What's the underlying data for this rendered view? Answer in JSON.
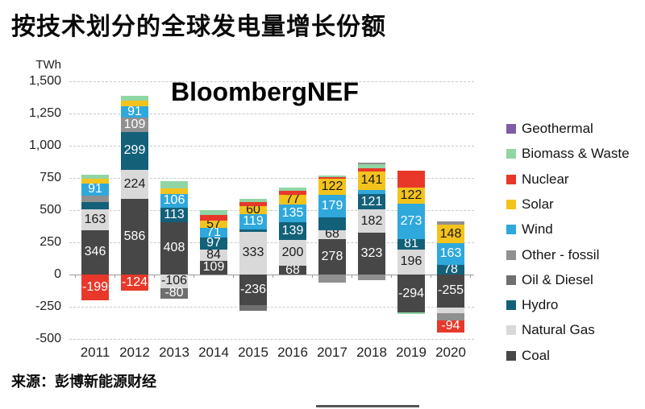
{
  "title": "按技术划分的全球发电量增长份额",
  "watermark": "BloombergNEF",
  "source": "来源：彭博新能源财经",
  "axis_unit": "TWh",
  "colors": {
    "coal": "#474747",
    "natgas": "#d9d9d9",
    "hydro": "#136079",
    "oil": "#6f6f6f",
    "other": "#909090",
    "wind": "#2fa8dc",
    "solar": "#f3c31d",
    "nuclear": "#e8382a",
    "biomass": "#90d5a4",
    "geothermal": "#7e5ca6"
  },
  "text_colors": {
    "coal": "#ffffff",
    "natgas": "#1a1a1a",
    "hydro": "#ffffff",
    "oil": "#ffffff",
    "other": "#ffffff",
    "wind": "#ffffff",
    "solar": "#1a1a1a",
    "nuclear": "#ffffff",
    "biomass": "#1a1a1a",
    "geothermal": "#ffffff"
  },
  "legend": {
    "items": [
      {
        "tech": "geothermal",
        "label": "Geothermal"
      },
      {
        "tech": "biomass",
        "label": "Biomass & Waste"
      },
      {
        "tech": "nuclear",
        "label": "Nuclear"
      },
      {
        "tech": "solar",
        "label": "Solar"
      },
      {
        "tech": "wind",
        "label": "Wind"
      },
      {
        "tech": "other",
        "label": "Other - fossil"
      },
      {
        "tech": "oil",
        "label": "Oil & Diesel"
      },
      {
        "tech": "hydro",
        "label": "Hydro"
      },
      {
        "tech": "natgas",
        "label": "Natural Gas"
      },
      {
        "tech": "coal",
        "label": "Coal"
      }
    ]
  },
  "chart_data": {
    "type": "bar",
    "stacked": true,
    "title": "按技术划分的全球发电量增长份额",
    "ylabel": "TWh",
    "ylim": [
      -500,
      1500
    ],
    "grid": "dashed horizontal",
    "legend_position": "right",
    "yticks": [
      {
        "value": 1500,
        "label": "1,500"
      },
      {
        "value": 1250,
        "label": "1,250"
      },
      {
        "value": 1000,
        "label": "1,000"
      },
      {
        "value": 750,
        "label": "750"
      },
      {
        "value": 500,
        "label": "500"
      },
      {
        "value": 250,
        "label": "250"
      },
      {
        "value": 0,
        "label": "0"
      },
      {
        "value": -250,
        "label": "-250"
      },
      {
        "value": -500,
        "label": "-500"
      }
    ],
    "note": "segments listed from zero outward; label empty = unlabeled in chart, value then estimated from pixels",
    "years": [
      {
        "year": "2011",
        "segments": [
          {
            "tech": "coal",
            "value": 346,
            "label": "346"
          },
          {
            "tech": "natgas",
            "value": 163,
            "label": "163"
          },
          {
            "tech": "hydro",
            "value": 55,
            "label": ""
          },
          {
            "tech": "other",
            "value": 50,
            "label": ""
          },
          {
            "tech": "wind",
            "value": 91,
            "label": "91"
          },
          {
            "tech": "solar",
            "value": 40,
            "label": ""
          },
          {
            "tech": "biomass",
            "value": 30,
            "label": ""
          },
          {
            "tech": "nuclear",
            "value": -199,
            "label": "-199"
          }
        ]
      },
      {
        "year": "2012",
        "segments": [
          {
            "tech": "coal",
            "value": 586,
            "label": "586"
          },
          {
            "tech": "natgas",
            "value": 224,
            "label": "224"
          },
          {
            "tech": "hydro",
            "value": 299,
            "label": "299"
          },
          {
            "tech": "other",
            "value": 109,
            "label": "109"
          },
          {
            "tech": "wind",
            "value": 91,
            "label": "91"
          },
          {
            "tech": "solar",
            "value": 38,
            "label": ""
          },
          {
            "tech": "biomass",
            "value": 38,
            "label": ""
          },
          {
            "tech": "nuclear",
            "value": -124,
            "label": "-124"
          }
        ]
      },
      {
        "year": "2013",
        "segments": [
          {
            "tech": "coal",
            "value": 408,
            "label": "408"
          },
          {
            "tech": "hydro",
            "value": 113,
            "label": "113"
          },
          {
            "tech": "wind",
            "value": 106,
            "label": "106"
          },
          {
            "tech": "solar",
            "value": 40,
            "label": ""
          },
          {
            "tech": "biomass",
            "value": 55,
            "label": ""
          },
          {
            "tech": "natgas",
            "value": -106,
            "label": "-106"
          },
          {
            "tech": "oil",
            "value": -80,
            "label": "-80"
          }
        ]
      },
      {
        "year": "2014",
        "segments": [
          {
            "tech": "coal",
            "value": 109,
            "label": "109"
          },
          {
            "tech": "natgas",
            "value": 84,
            "label": "84"
          },
          {
            "tech": "hydro",
            "value": 97,
            "label": "97"
          },
          {
            "tech": "wind",
            "value": 71,
            "label": "71"
          },
          {
            "tech": "solar",
            "value": 57,
            "label": "57"
          },
          {
            "tech": "nuclear",
            "value": 45,
            "label": ""
          },
          {
            "tech": "biomass",
            "value": 35,
            "label": ""
          }
        ]
      },
      {
        "year": "2015",
        "segments": [
          {
            "tech": "natgas",
            "value": 333,
            "label": "333"
          },
          {
            "tech": "hydro",
            "value": 19,
            "label": ""
          },
          {
            "tech": "wind",
            "value": 119,
            "label": "119"
          },
          {
            "tech": "solar",
            "value": 60,
            "label": "60"
          },
          {
            "tech": "nuclear",
            "value": 30,
            "label": ""
          },
          {
            "tech": "biomass",
            "value": 25,
            "label": ""
          },
          {
            "tech": "coal",
            "value": -236,
            "label": "-236"
          },
          {
            "tech": "oil",
            "value": -45,
            "label": ""
          }
        ]
      },
      {
        "year": "2016",
        "segments": [
          {
            "tech": "coal",
            "value": 68,
            "label": "68"
          },
          {
            "tech": "natgas",
            "value": 200,
            "label": "200"
          },
          {
            "tech": "hydro",
            "value": 139,
            "label": "139"
          },
          {
            "tech": "wind",
            "value": 135,
            "label": "135"
          },
          {
            "tech": "solar",
            "value": 77,
            "label": "77"
          },
          {
            "tech": "nuclear",
            "value": 28,
            "label": ""
          },
          {
            "tech": "biomass",
            "value": 28,
            "label": ""
          }
        ]
      },
      {
        "year": "2017",
        "segments": [
          {
            "tech": "coal",
            "value": 278,
            "label": "278"
          },
          {
            "tech": "natgas",
            "value": 68,
            "label": "68"
          },
          {
            "tech": "hydro",
            "value": 95,
            "label": ""
          },
          {
            "tech": "wind",
            "value": 179,
            "label": "179"
          },
          {
            "tech": "solar",
            "value": 122,
            "label": "122"
          },
          {
            "tech": "nuclear",
            "value": 12,
            "label": ""
          },
          {
            "tech": "biomass",
            "value": 15,
            "label": ""
          },
          {
            "tech": "other",
            "value": -65,
            "label": ""
          }
        ]
      },
      {
        "year": "2018",
        "segments": [
          {
            "tech": "coal",
            "value": 323,
            "label": "323"
          },
          {
            "tech": "natgas",
            "value": 182,
            "label": "182"
          },
          {
            "tech": "hydro",
            "value": 121,
            "label": "121"
          },
          {
            "tech": "wind",
            "value": 33,
            "label": ""
          },
          {
            "tech": "solar",
            "value": 141,
            "label": "141"
          },
          {
            "tech": "nuclear",
            "value": 28,
            "label": ""
          },
          {
            "tech": "biomass",
            "value": 30,
            "label": ""
          },
          {
            "tech": "other",
            "value": 12,
            "label": ""
          },
          {
            "tech": "other",
            "value": -45,
            "label": ""
          }
        ]
      },
      {
        "year": "2019",
        "segments": [
          {
            "tech": "natgas",
            "value": 196,
            "label": "196"
          },
          {
            "tech": "hydro",
            "value": 81,
            "label": "81"
          },
          {
            "tech": "wind",
            "value": 273,
            "label": "273"
          },
          {
            "tech": "solar",
            "value": 122,
            "label": "122"
          },
          {
            "tech": "nuclear",
            "value": 135,
            "label": ""
          },
          {
            "tech": "coal",
            "value": -294,
            "label": "-294"
          },
          {
            "tech": "biomass",
            "value": -15,
            "label": ""
          }
        ]
      },
      {
        "year": "2020",
        "segments": [
          {
            "tech": "hydro",
            "value": 78,
            "label": "78"
          },
          {
            "tech": "wind",
            "value": 163,
            "label": "163"
          },
          {
            "tech": "solar",
            "value": 148,
            "label": "148"
          },
          {
            "tech": "other",
            "value": 25,
            "label": ""
          },
          {
            "tech": "coal",
            "value": -255,
            "label": "-255"
          },
          {
            "tech": "natgas",
            "value": -45,
            "label": ""
          },
          {
            "tech": "other",
            "value": -55,
            "label": ""
          },
          {
            "tech": "nuclear",
            "value": -94,
            "label": "-94"
          }
        ]
      }
    ]
  }
}
